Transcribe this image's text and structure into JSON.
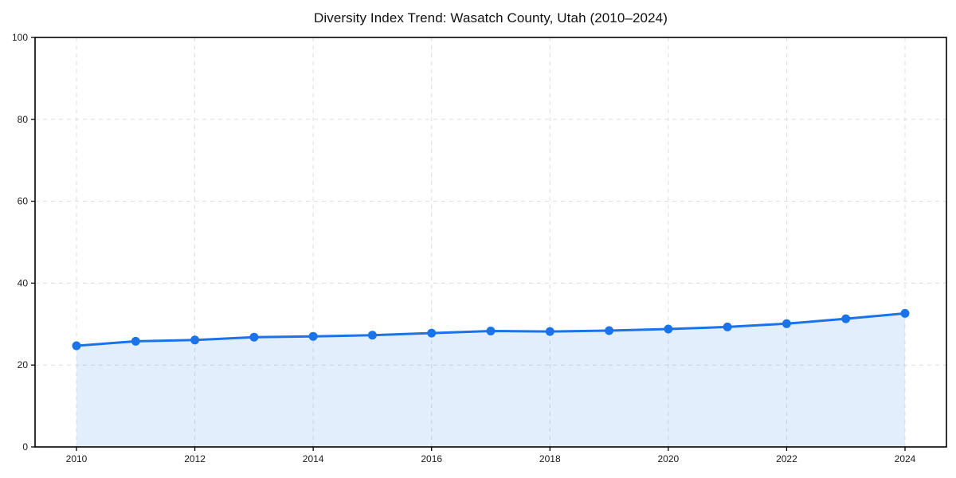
{
  "title": "Diversity Index Trend: Wasatch County, Utah (2010–2024)",
  "chart_data": {
    "type": "area",
    "series_name": "Diversity Index",
    "x": [
      2010,
      2011,
      2012,
      2013,
      2014,
      2015,
      2016,
      2017,
      2018,
      2019,
      2020,
      2021,
      2022,
      2023,
      2024
    ],
    "values": [
      24.7,
      25.8,
      26.1,
      26.8,
      27.0,
      27.3,
      27.8,
      28.3,
      28.2,
      28.4,
      28.8,
      29.3,
      30.1,
      31.3,
      32.6
    ],
    "title": "Diversity Index Trend: Wasatch County, Utah (2010–2024)",
    "xlabel": "",
    "ylabel": "",
    "xlim": [
      2009.3,
      2024.7
    ],
    "ylim": [
      0,
      100
    ],
    "xticks": [
      "2010",
      "2012",
      "2014",
      "2016",
      "2018",
      "2020",
      "2022",
      "2024"
    ],
    "xtick_values": [
      2010,
      2012,
      2014,
      2016,
      2018,
      2020,
      2022,
      2024
    ],
    "yticks": [
      "0",
      "20",
      "40",
      "60",
      "80",
      "100"
    ],
    "ytick_values": [
      0,
      20,
      40,
      60,
      80,
      100
    ],
    "grid": true,
    "legend": "none",
    "colors": {
      "line": "#1a73e8",
      "marker": "#1a73e8",
      "fill": "rgba(26,115,232,0.12)",
      "grid": "#dedede",
      "frame": "#000000",
      "tick_text": "#1a1a1a",
      "title_text": "#111111",
      "background": "#ffffff"
    }
  }
}
